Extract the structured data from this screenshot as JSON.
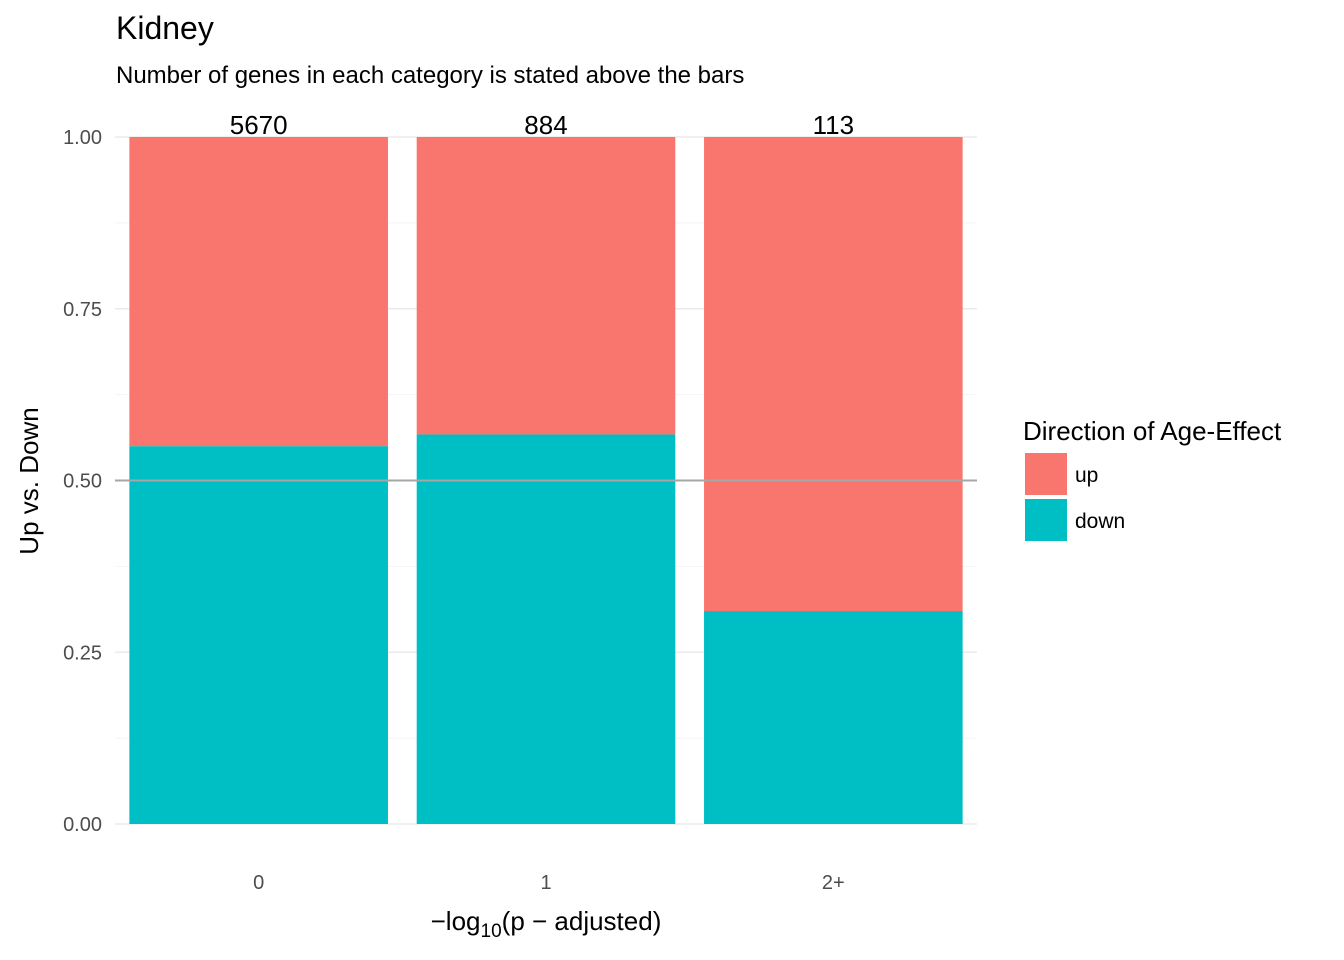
{
  "chart_data": {
    "type": "bar",
    "stacked": true,
    "title": "Kidney",
    "subtitle": "Number of genes in each category is stated above the bars",
    "xlabel": "-log10(p-adjusted)",
    "ylabel": "Up vs. Down",
    "categories": [
      "0",
      "1",
      "2+"
    ],
    "counts": [
      "5670",
      "884",
      "113"
    ],
    "series": [
      {
        "name": "down",
        "values": [
          0.55,
          0.567,
          0.31
        ],
        "color": "#00BFC4"
      },
      {
        "name": "up",
        "values": [
          0.45,
          0.433,
          0.69
        ],
        "color": "#F8766D"
      }
    ],
    "ylim": [
      0,
      1
    ],
    "yticks": [
      "0.00",
      "0.25",
      "0.50",
      "0.75",
      "1.00"
    ],
    "reference_line": 0.5,
    "grid": true,
    "legend": {
      "title": "Direction of Age-Effect",
      "position": "right",
      "items": [
        {
          "label": "up",
          "color": "#F8766D"
        },
        {
          "label": "down",
          "color": "#00BFC4"
        }
      ]
    }
  }
}
